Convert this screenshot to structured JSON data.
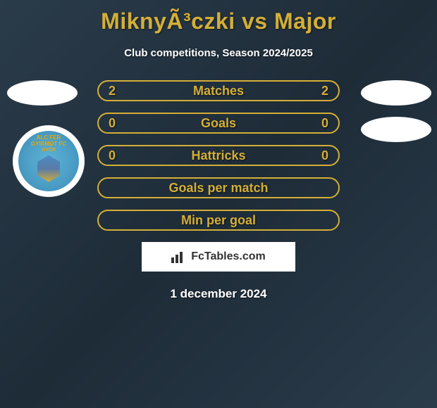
{
  "header": {
    "title": "MiknyÃ³czki vs Major",
    "subtitle": "Club competitions, Season 2024/2025"
  },
  "club_badge": {
    "line1": "ALC FER",
    "line2": "GYIRMOT FC",
    "line3": "GYŐR"
  },
  "stats": [
    {
      "left_value": "2",
      "label": "Matches",
      "right_value": "2",
      "show_values": true
    },
    {
      "left_value": "0",
      "label": "Goals",
      "right_value": "0",
      "show_values": true
    },
    {
      "left_value": "0",
      "label": "Hattricks",
      "right_value": "0",
      "show_values": true
    },
    {
      "left_value": "",
      "label": "Goals per match",
      "right_value": "",
      "show_values": false
    },
    {
      "left_value": "",
      "label": "Min per goal",
      "right_value": "",
      "show_values": false
    }
  ],
  "branding": {
    "text": "FcTables.com"
  },
  "footer": {
    "date": "1 december 2024"
  },
  "styling": {
    "title_color": "#d4af37",
    "title_fontsize": 32,
    "subtitle_color": "#ffffff",
    "subtitle_fontsize": 15,
    "background_gradient": [
      "#2a3b4a",
      "#1e2c38",
      "#2a3b4a"
    ],
    "stat_bar_border_color": "#d4af37",
    "stat_bar_border_width": 2,
    "stat_bar_border_radius": 15,
    "stat_bar_height": 30,
    "stat_bar_width": 344,
    "stat_text_color": "#d4af37",
    "stat_text_fontsize": 18,
    "date_color": "#ffffff",
    "date_fontsize": 17,
    "branding_box_bg": "#ffffff",
    "branding_box_width": 218,
    "branding_box_height": 42,
    "side_icon_bg": "#ffffff",
    "side_icon_width": 100,
    "side_icon_height": 36,
    "club_badge_diameter": 102,
    "club_badge_inner_gradient": [
      "#5eb3d6",
      "#4a9cc4",
      "#3a8ab5"
    ]
  }
}
